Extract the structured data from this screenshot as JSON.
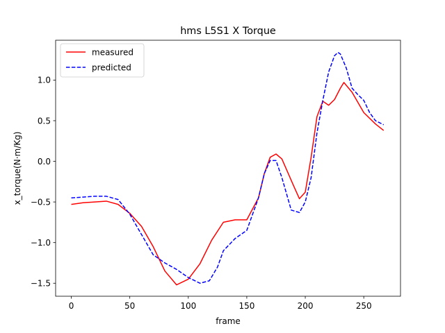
{
  "chart_data": {
    "type": "line",
    "title": "hms L5S1 X Torque",
    "xlabel": "frame",
    "ylabel": "x_torque(N·m/Kg)",
    "xlim": [
      -13.4,
      281.4
    ],
    "ylim": [
      -1.66,
      1.49
    ],
    "xticks": [
      0,
      50,
      100,
      150,
      200,
      250
    ],
    "yticks": [
      -1.5,
      -1.0,
      -0.5,
      0.0,
      0.5,
      1.0
    ],
    "ytick_labels": [
      "−1.5",
      "−1.0",
      "−0.5",
      "0.0",
      "0.5",
      "1.0"
    ],
    "grid": false,
    "legend_position": "top-left",
    "series": [
      {
        "name": "measured",
        "color": "#ff0000",
        "style": "solid",
        "points": [
          [
            0,
            -0.53
          ],
          [
            10,
            -0.51
          ],
          [
            20,
            -0.5
          ],
          [
            30,
            -0.49
          ],
          [
            40,
            -0.53
          ],
          [
            50,
            -0.64
          ],
          [
            60,
            -0.8
          ],
          [
            70,
            -1.05
          ],
          [
            80,
            -1.35
          ],
          [
            90,
            -1.52
          ],
          [
            100,
            -1.45
          ],
          [
            110,
            -1.26
          ],
          [
            120,
            -0.97
          ],
          [
            130,
            -0.75
          ],
          [
            140,
            -0.72
          ],
          [
            150,
            -0.72
          ],
          [
            160,
            -0.45
          ],
          [
            165,
            -0.15
          ],
          [
            170,
            0.05
          ],
          [
            175,
            0.09
          ],
          [
            180,
            0.03
          ],
          [
            190,
            -0.3
          ],
          [
            195,
            -0.46
          ],
          [
            200,
            -0.38
          ],
          [
            205,
            0.05
          ],
          [
            210,
            0.55
          ],
          [
            215,
            0.74
          ],
          [
            220,
            0.69
          ],
          [
            225,
            0.76
          ],
          [
            230,
            0.9
          ],
          [
            233,
            0.97
          ],
          [
            240,
            0.85
          ],
          [
            250,
            0.6
          ],
          [
            260,
            0.46
          ],
          [
            267,
            0.38
          ]
        ]
      },
      {
        "name": "predicted",
        "color": "#0000ff",
        "style": "dashed",
        "points": [
          [
            0,
            -0.45
          ],
          [
            10,
            -0.44
          ],
          [
            20,
            -0.43
          ],
          [
            30,
            -0.43
          ],
          [
            40,
            -0.47
          ],
          [
            50,
            -0.65
          ],
          [
            60,
            -0.9
          ],
          [
            70,
            -1.15
          ],
          [
            80,
            -1.25
          ],
          [
            90,
            -1.33
          ],
          [
            100,
            -1.43
          ],
          [
            110,
            -1.5
          ],
          [
            118,
            -1.47
          ],
          [
            125,
            -1.3
          ],
          [
            130,
            -1.1
          ],
          [
            140,
            -0.95
          ],
          [
            150,
            -0.85
          ],
          [
            160,
            -0.45
          ],
          [
            165,
            -0.15
          ],
          [
            170,
            0.01
          ],
          [
            175,
            0.01
          ],
          [
            180,
            -0.2
          ],
          [
            188,
            -0.6
          ],
          [
            195,
            -0.63
          ],
          [
            200,
            -0.5
          ],
          [
            205,
            -0.2
          ],
          [
            210,
            0.35
          ],
          [
            215,
            0.75
          ],
          [
            220,
            1.1
          ],
          [
            225,
            1.3
          ],
          [
            228,
            1.34
          ],
          [
            230,
            1.32
          ],
          [
            235,
            1.15
          ],
          [
            240,
            0.9
          ],
          [
            245,
            0.82
          ],
          [
            250,
            0.75
          ],
          [
            255,
            0.6
          ],
          [
            260,
            0.5
          ],
          [
            267,
            0.45
          ]
        ]
      }
    ]
  }
}
